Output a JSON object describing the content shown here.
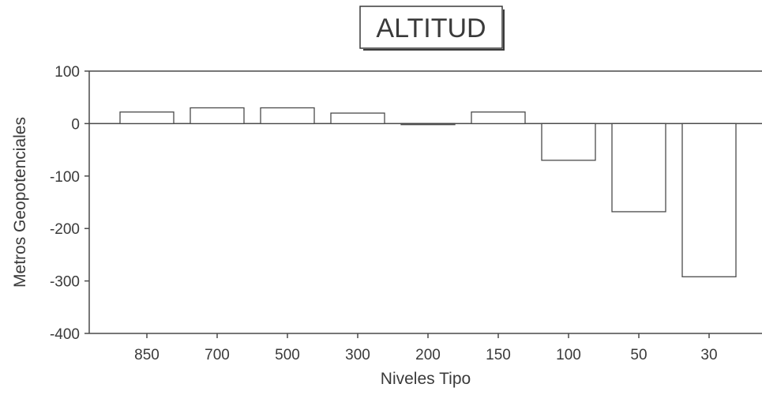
{
  "chart_data": {
    "type": "bar",
    "title": "ALTITUD",
    "xlabel": "Niveles Tipo",
    "ylabel": "Metros Geopotenciales",
    "categories": [
      "850",
      "700",
      "500",
      "300",
      "200",
      "150",
      "100",
      "50",
      "30"
    ],
    "values": [
      22,
      30,
      30,
      20,
      -2,
      22,
      -70,
      -168,
      -292
    ],
    "ylim": [
      -400,
      100
    ],
    "yticks": [
      "100",
      "0",
      "-100",
      "-200",
      "-300",
      "-400"
    ],
    "grid": false,
    "legend": "none",
    "bar_fill": "#ffffff",
    "bar_stroke": "#4a4a4a",
    "axis_color": "#4a4a4a"
  }
}
